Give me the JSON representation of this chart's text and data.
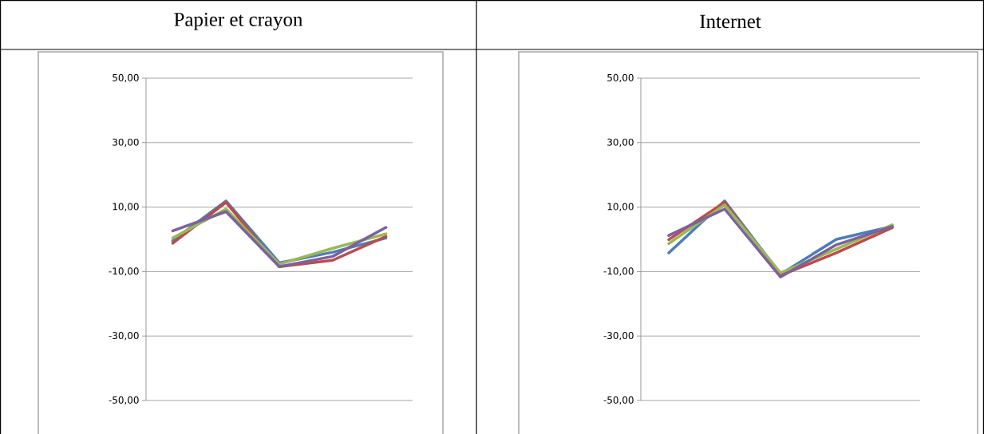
{
  "chart_data": [
    {
      "type": "line",
      "title": "Papier et crayon",
      "categories": [
        null,
        null,
        null,
        null,
        null
      ],
      "ylim": [
        -50,
        50
      ],
      "yticks": [
        {
          "value": -50,
          "label": "-50,00"
        },
        {
          "value": -30,
          "label": "-30,00"
        },
        {
          "value": -10,
          "label": "-10,00"
        },
        {
          "value": 10,
          "label": "10,00"
        },
        {
          "value": 30,
          "label": "30,00"
        },
        {
          "value": 50,
          "label": "50,00"
        }
      ],
      "grid": "y",
      "series": [
        {
          "color": "#4a7ebb",
          "values": [
            -0.4,
            11.9,
            -7.3,
            -4.0,
            0.4
          ]
        },
        {
          "color": "#be4b48",
          "values": [
            -1.2,
            11.5,
            -8.5,
            -6.5,
            0.9
          ]
        },
        {
          "color": "#98b954",
          "values": [
            0.4,
            9.4,
            -7.7,
            -2.8,
            1.7
          ]
        },
        {
          "color": "#7d60a0",
          "values": [
            2.6,
            8.6,
            -8.5,
            -5.3,
            3.7
          ]
        }
      ]
    },
    {
      "type": "line",
      "title": "Internet",
      "categories": [
        null,
        null,
        null,
        null,
        null
      ],
      "ylim": [
        -50,
        50
      ],
      "yticks": [
        {
          "value": -50,
          "label": "-50,00"
        },
        {
          "value": -30,
          "label": "-30,00"
        },
        {
          "value": -10,
          "label": "-10,00"
        },
        {
          "value": 10,
          "label": "10,00"
        },
        {
          "value": 30,
          "label": "30,00"
        },
        {
          "value": 50,
          "label": "50,00"
        }
      ],
      "grid": "y",
      "series": [
        {
          "color": "#4a7ebb",
          "values": [
            -4.2,
            11.9,
            -10.8,
            0.0,
            4.0
          ]
        },
        {
          "color": "#be4b48",
          "values": [
            -0.1,
            11.5,
            -11.2,
            -4.2,
            3.6
          ]
        },
        {
          "color": "#98b954",
          "values": [
            -1.3,
            10.7,
            -10.4,
            -3.0,
            4.5
          ]
        },
        {
          "color": "#7d60a0",
          "values": [
            1.2,
            9.4,
            -11.7,
            -1.7,
            4.0
          ]
        }
      ]
    }
  ]
}
